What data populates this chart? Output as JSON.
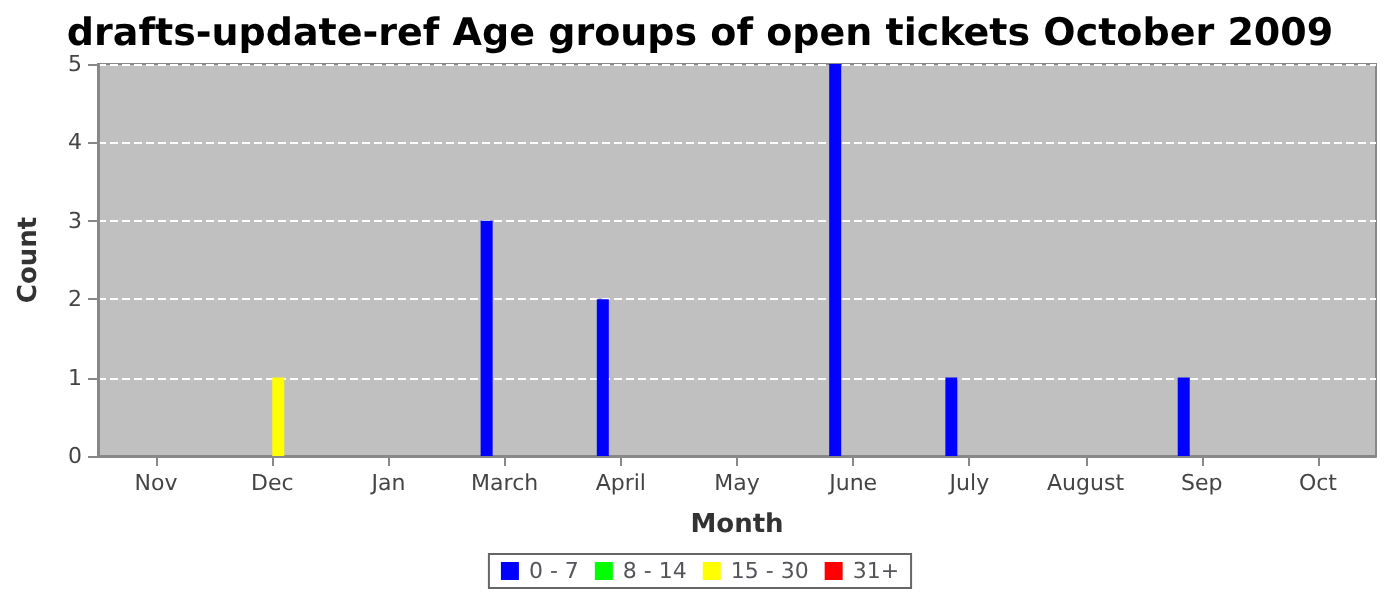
{
  "chart_data": {
    "type": "bar",
    "title": "drafts-update-ref Age groups of open tickets October 2009",
    "xlabel": "Month",
    "ylabel": "Count",
    "categories": [
      "Nov",
      "Dec",
      "Jan",
      "March",
      "April",
      "May",
      "June",
      "July",
      "August",
      "Sep",
      "Oct"
    ],
    "series": [
      {
        "name": "0 - 7",
        "color": "#0000ff",
        "values": [
          0,
          0,
          0,
          3,
          2,
          0,
          5,
          1,
          0,
          1,
          0
        ]
      },
      {
        "name": "8 - 14",
        "color": "#00ff00",
        "values": [
          0,
          0,
          0,
          0,
          0,
          0,
          0,
          0,
          0,
          0,
          0
        ]
      },
      {
        "name": "15 - 30",
        "color": "#ffff00",
        "values": [
          0,
          1,
          0,
          0,
          0,
          0,
          0,
          0,
          0,
          0,
          0
        ]
      },
      {
        "name": "31+",
        "color": "#ff0000",
        "values": [
          0,
          0,
          0,
          0,
          0,
          0,
          0,
          0,
          0,
          0,
          0
        ]
      }
    ],
    "ylim": [
      0,
      5
    ],
    "yticks": [
      0,
      1,
      2,
      3,
      4,
      5
    ],
    "grid": "y",
    "legend": "bottom"
  }
}
